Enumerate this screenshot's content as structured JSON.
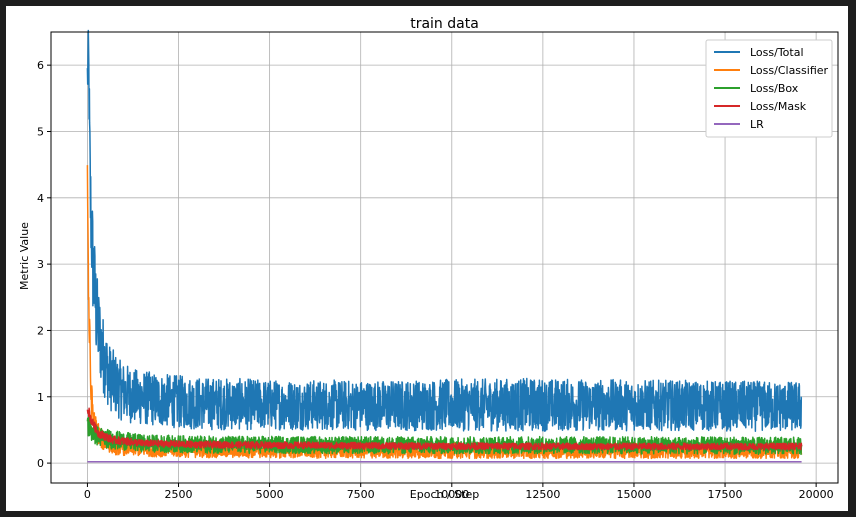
{
  "chart_data": {
    "type": "line",
    "title": "train data",
    "xlabel": "Epoch / Step",
    "ylabel": "Metric Value",
    "xlim": [
      -1000,
      20600
    ],
    "ylim": [
      -0.3,
      6.5
    ],
    "xticks": [
      0,
      2500,
      5000,
      7500,
      10000,
      12500,
      15000,
      17500,
      20000
    ],
    "yticks": [
      0,
      1,
      2,
      3,
      4,
      5,
      6
    ],
    "grid": true,
    "legend_position": "top-right",
    "series": [
      {
        "name": "Loss/Total",
        "color": "#1f77b4",
        "x_range": [
          0,
          19600
        ],
        "x": [
          0,
          30,
          80,
          150,
          250,
          400,
          600,
          900,
          1300,
          2000,
          3000,
          5000,
          8000,
          12000,
          16000,
          19600
        ],
        "y": [
          5.8,
          6.2,
          4.0,
          3.0,
          2.2,
          1.7,
          1.3,
          1.1,
          1.0,
          0.95,
          0.9,
          0.88,
          0.87,
          0.88,
          0.87,
          0.85
        ],
        "spread": [
          0.5,
          0.4,
          0.8,
          0.8,
          0.7,
          0.6,
          0.5,
          0.45,
          0.42,
          0.4,
          0.4,
          0.38,
          0.38,
          0.4,
          0.38,
          0.38
        ]
      },
      {
        "name": "Loss/Classifier",
        "color": "#ff7f0e",
        "x_range": [
          0,
          19600
        ],
        "x": [
          0,
          30,
          100,
          200,
          400,
          800,
          1500,
          3000,
          8000,
          14000,
          19600
        ],
        "y": [
          4.6,
          2.5,
          1.0,
          0.55,
          0.35,
          0.25,
          0.22,
          0.2,
          0.19,
          0.19,
          0.19
        ],
        "spread": [
          0.4,
          0.5,
          0.3,
          0.2,
          0.15,
          0.13,
          0.12,
          0.12,
          0.12,
          0.12,
          0.12
        ]
      },
      {
        "name": "Loss/Box",
        "color": "#2ca02c",
        "x_range": [
          0,
          19600
        ],
        "x": [
          0,
          100,
          300,
          700,
          1500,
          3000,
          8000,
          14000,
          19600
        ],
        "y": [
          0.6,
          0.5,
          0.4,
          0.35,
          0.3,
          0.28,
          0.27,
          0.27,
          0.26
        ],
        "spread": [
          0.2,
          0.18,
          0.15,
          0.14,
          0.13,
          0.13,
          0.13,
          0.13,
          0.13
        ]
      },
      {
        "name": "Loss/Mask",
        "color": "#d62728",
        "x_range": [
          0,
          19600
        ],
        "x": [
          0,
          100,
          300,
          700,
          1500,
          3000,
          8000,
          14000,
          19600
        ],
        "y": [
          0.85,
          0.65,
          0.45,
          0.35,
          0.3,
          0.28,
          0.26,
          0.25,
          0.25
        ],
        "spread": [
          0.08,
          0.07,
          0.06,
          0.06,
          0.05,
          0.05,
          0.05,
          0.05,
          0.05
        ]
      },
      {
        "name": "LR",
        "color": "#9467bd",
        "x_range": [
          0,
          19600
        ],
        "x": [
          0,
          19600
        ],
        "y": [
          0.01,
          0.01
        ],
        "spread": [
          0,
          0
        ]
      }
    ]
  }
}
